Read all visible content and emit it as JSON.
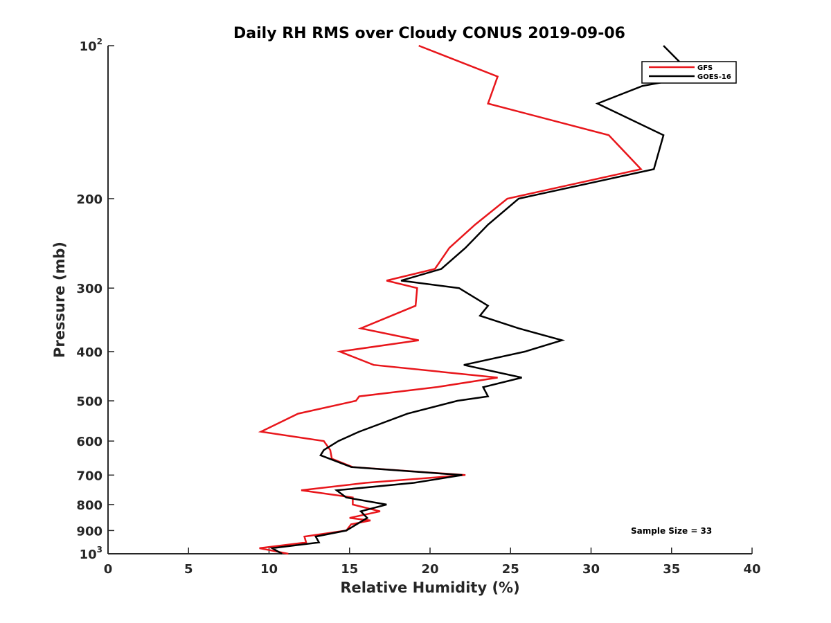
{
  "chart_data": {
    "type": "line",
    "title": "Daily RH RMS over Cloudy CONUS 2019-09-06",
    "xlabel": "Relative Humidity (%)",
    "ylabel": "Pressure (mb)",
    "xlim": [
      0,
      40
    ],
    "ylim": [
      100,
      1000
    ],
    "y_scale": "log",
    "y_reversed": true,
    "grid": false,
    "legend_placement": "top-right",
    "x_ticks": [
      0,
      5,
      10,
      15,
      20,
      25,
      30,
      35,
      40
    ],
    "x_tick_labels": [
      "0",
      "5",
      "10",
      "15",
      "20",
      "25",
      "30",
      "35",
      "40"
    ],
    "y_ticks": [
      100,
      200,
      300,
      400,
      500,
      600,
      700,
      800,
      900,
      1000
    ],
    "y_tick_labels": [
      {
        "base": "10",
        "sup": "2"
      },
      {
        "base": "200",
        "sup": ""
      },
      {
        "base": "300",
        "sup": ""
      },
      {
        "base": "400",
        "sup": ""
      },
      {
        "base": "500",
        "sup": ""
      },
      {
        "base": "600",
        "sup": ""
      },
      {
        "base": "700",
        "sup": ""
      },
      {
        "base": "800",
        "sup": ""
      },
      {
        "base": "900",
        "sup": ""
      },
      {
        "base": "10",
        "sup": "3"
      }
    ],
    "annotation": "Sample Size = 33",
    "series": [
      {
        "name": "GFS",
        "color": "#e8161b",
        "points": [
          [
            19.3,
            100
          ],
          [
            24.2,
            115
          ],
          [
            23.6,
            130
          ],
          [
            31.1,
            150
          ],
          [
            33.1,
            175
          ],
          [
            24.8,
            200
          ],
          [
            22.8,
            225
          ],
          [
            21.2,
            250
          ],
          [
            20.3,
            275
          ],
          [
            17.3,
            290
          ],
          [
            19.2,
            300
          ],
          [
            19.1,
            325
          ],
          [
            15.7,
            360
          ],
          [
            19.3,
            380
          ],
          [
            14.4,
            400
          ],
          [
            16.5,
            425
          ],
          [
            24.2,
            450
          ],
          [
            20.4,
            470
          ],
          [
            15.6,
            490
          ],
          [
            15.4,
            500
          ],
          [
            11.8,
            530
          ],
          [
            9.5,
            575
          ],
          [
            13.4,
            600
          ],
          [
            13.8,
            625
          ],
          [
            13.9,
            650
          ],
          [
            15.2,
            675
          ],
          [
            22.2,
            700
          ],
          [
            16.0,
            725
          ],
          [
            12.0,
            750
          ],
          [
            15.2,
            775
          ],
          [
            15.2,
            800
          ],
          [
            16.9,
            825
          ],
          [
            15.0,
            850
          ],
          [
            16.3,
            860
          ],
          [
            15.1,
            875
          ],
          [
            14.8,
            900
          ],
          [
            12.2,
            925
          ],
          [
            12.3,
            950
          ],
          [
            9.4,
            975
          ],
          [
            11.2,
            1000
          ]
        ]
      },
      {
        "name": "GOES-16",
        "color": "#000000",
        "points": [
          [
            34.5,
            100
          ],
          [
            36.4,
            115
          ],
          [
            33.2,
            120
          ],
          [
            30.4,
            130
          ],
          [
            34.5,
            150
          ],
          [
            33.9,
            175
          ],
          [
            25.5,
            200
          ],
          [
            23.6,
            225
          ],
          [
            22.2,
            250
          ],
          [
            20.7,
            275
          ],
          [
            18.2,
            290
          ],
          [
            21.8,
            300
          ],
          [
            23.6,
            325
          ],
          [
            23.1,
            340
          ],
          [
            25.5,
            360
          ],
          [
            28.2,
            380
          ],
          [
            25.9,
            400
          ],
          [
            22.1,
            425
          ],
          [
            25.7,
            450
          ],
          [
            23.3,
            470
          ],
          [
            23.6,
            490
          ],
          [
            21.7,
            500
          ],
          [
            18.6,
            530
          ],
          [
            15.6,
            575
          ],
          [
            14.3,
            600
          ],
          [
            13.4,
            625
          ],
          [
            13.2,
            640
          ],
          [
            15.1,
            675
          ],
          [
            22.0,
            700
          ],
          [
            19.0,
            725
          ],
          [
            14.2,
            750
          ],
          [
            14.8,
            775
          ],
          [
            17.3,
            800
          ],
          [
            15.7,
            825
          ],
          [
            16.1,
            850
          ],
          [
            14.8,
            900
          ],
          [
            12.9,
            925
          ],
          [
            13.1,
            950
          ],
          [
            10.2,
            975
          ],
          [
            10.8,
            1000
          ]
        ]
      }
    ]
  }
}
